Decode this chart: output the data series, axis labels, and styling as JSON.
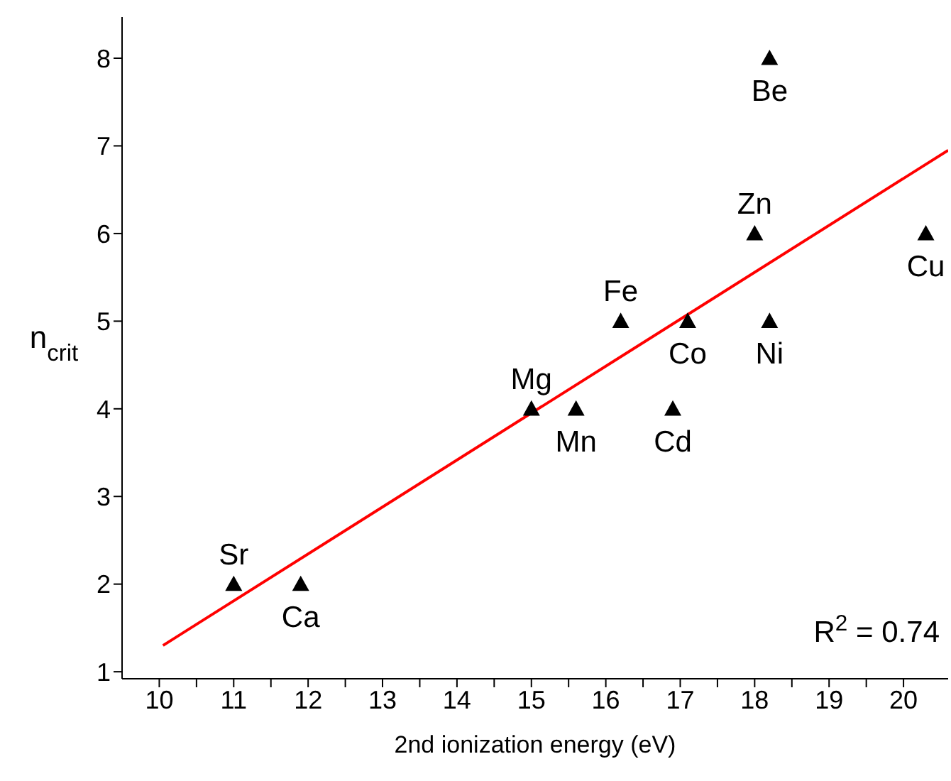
{
  "chart_data": {
    "type": "scatter",
    "xlabel": "2nd ionization energy (eV)",
    "ylabel": "n$_{crit}$",
    "xlim": [
      9.5,
      20.6
    ],
    "ylim": [
      0.92,
      8.47
    ],
    "xticks": [
      10,
      {
        "value": 10.5,
        "label": null
      },
      11,
      {
        "value": 11.5,
        "label": null
      },
      12,
      {
        "value": 12.5,
        "label": null
      },
      13,
      {
        "value": 13.5,
        "label": null
      },
      14,
      {
        "value": 14.5,
        "label": null
      },
      15,
      {
        "value": 15.5,
        "label": null
      },
      16,
      {
        "value": 16.5,
        "label": null
      },
      17,
      {
        "value": 17.5,
        "label": null
      },
      18,
      {
        "value": 18.5,
        "label": null
      },
      19,
      {
        "value": 19.5,
        "label": null
      },
      20
    ],
    "yticks": [
      1,
      2,
      3,
      4,
      5,
      6,
      7,
      8
    ],
    "grid": false,
    "legend": false,
    "series": [
      {
        "marker": "triangle",
        "color": "#000000",
        "x": [
          11.0,
          11.9,
          15.0,
          15.6,
          16.9,
          16.2,
          17.1,
          18.2,
          18.0,
          18.2,
          20.3
        ],
        "values": [
          2,
          2,
          4,
          4,
          4,
          5,
          5,
          5,
          6,
          8,
          6
        ]
      },
      {
        "type": "line",
        "marker": "none",
        "color": "#ff0000",
        "x": [
          10.05,
          20.6
        ],
        "values": [
          1.3,
          6.95
        ]
      }
    ],
    "annotations": [
      {
        "text": "Sr",
        "x": 11.0,
        "y": 2
      },
      {
        "text": "Ca",
        "x": 11.9,
        "y": 2
      },
      {
        "text": "Mg",
        "x": 15.0,
        "y": 4
      },
      {
        "text": "Mn",
        "x": 15.6,
        "y": 4
      },
      {
        "text": "Cd",
        "x": 16.9,
        "y": 4
      },
      {
        "text": "Fe",
        "x": 16.2,
        "y": 5
      },
      {
        "text": "Co",
        "x": 17.1,
        "y": 5
      },
      {
        "text": "Ni",
        "x": 18.2,
        "y": 5
      },
      {
        "text": "Zn",
        "x": 18.0,
        "y": 6
      },
      {
        "text": "Be",
        "x": 18.2,
        "y": 8
      },
      {
        "text": "Cu",
        "x": 20.3,
        "y": 6
      },
      "R$^{2}$ = 0.74"
    ]
  }
}
